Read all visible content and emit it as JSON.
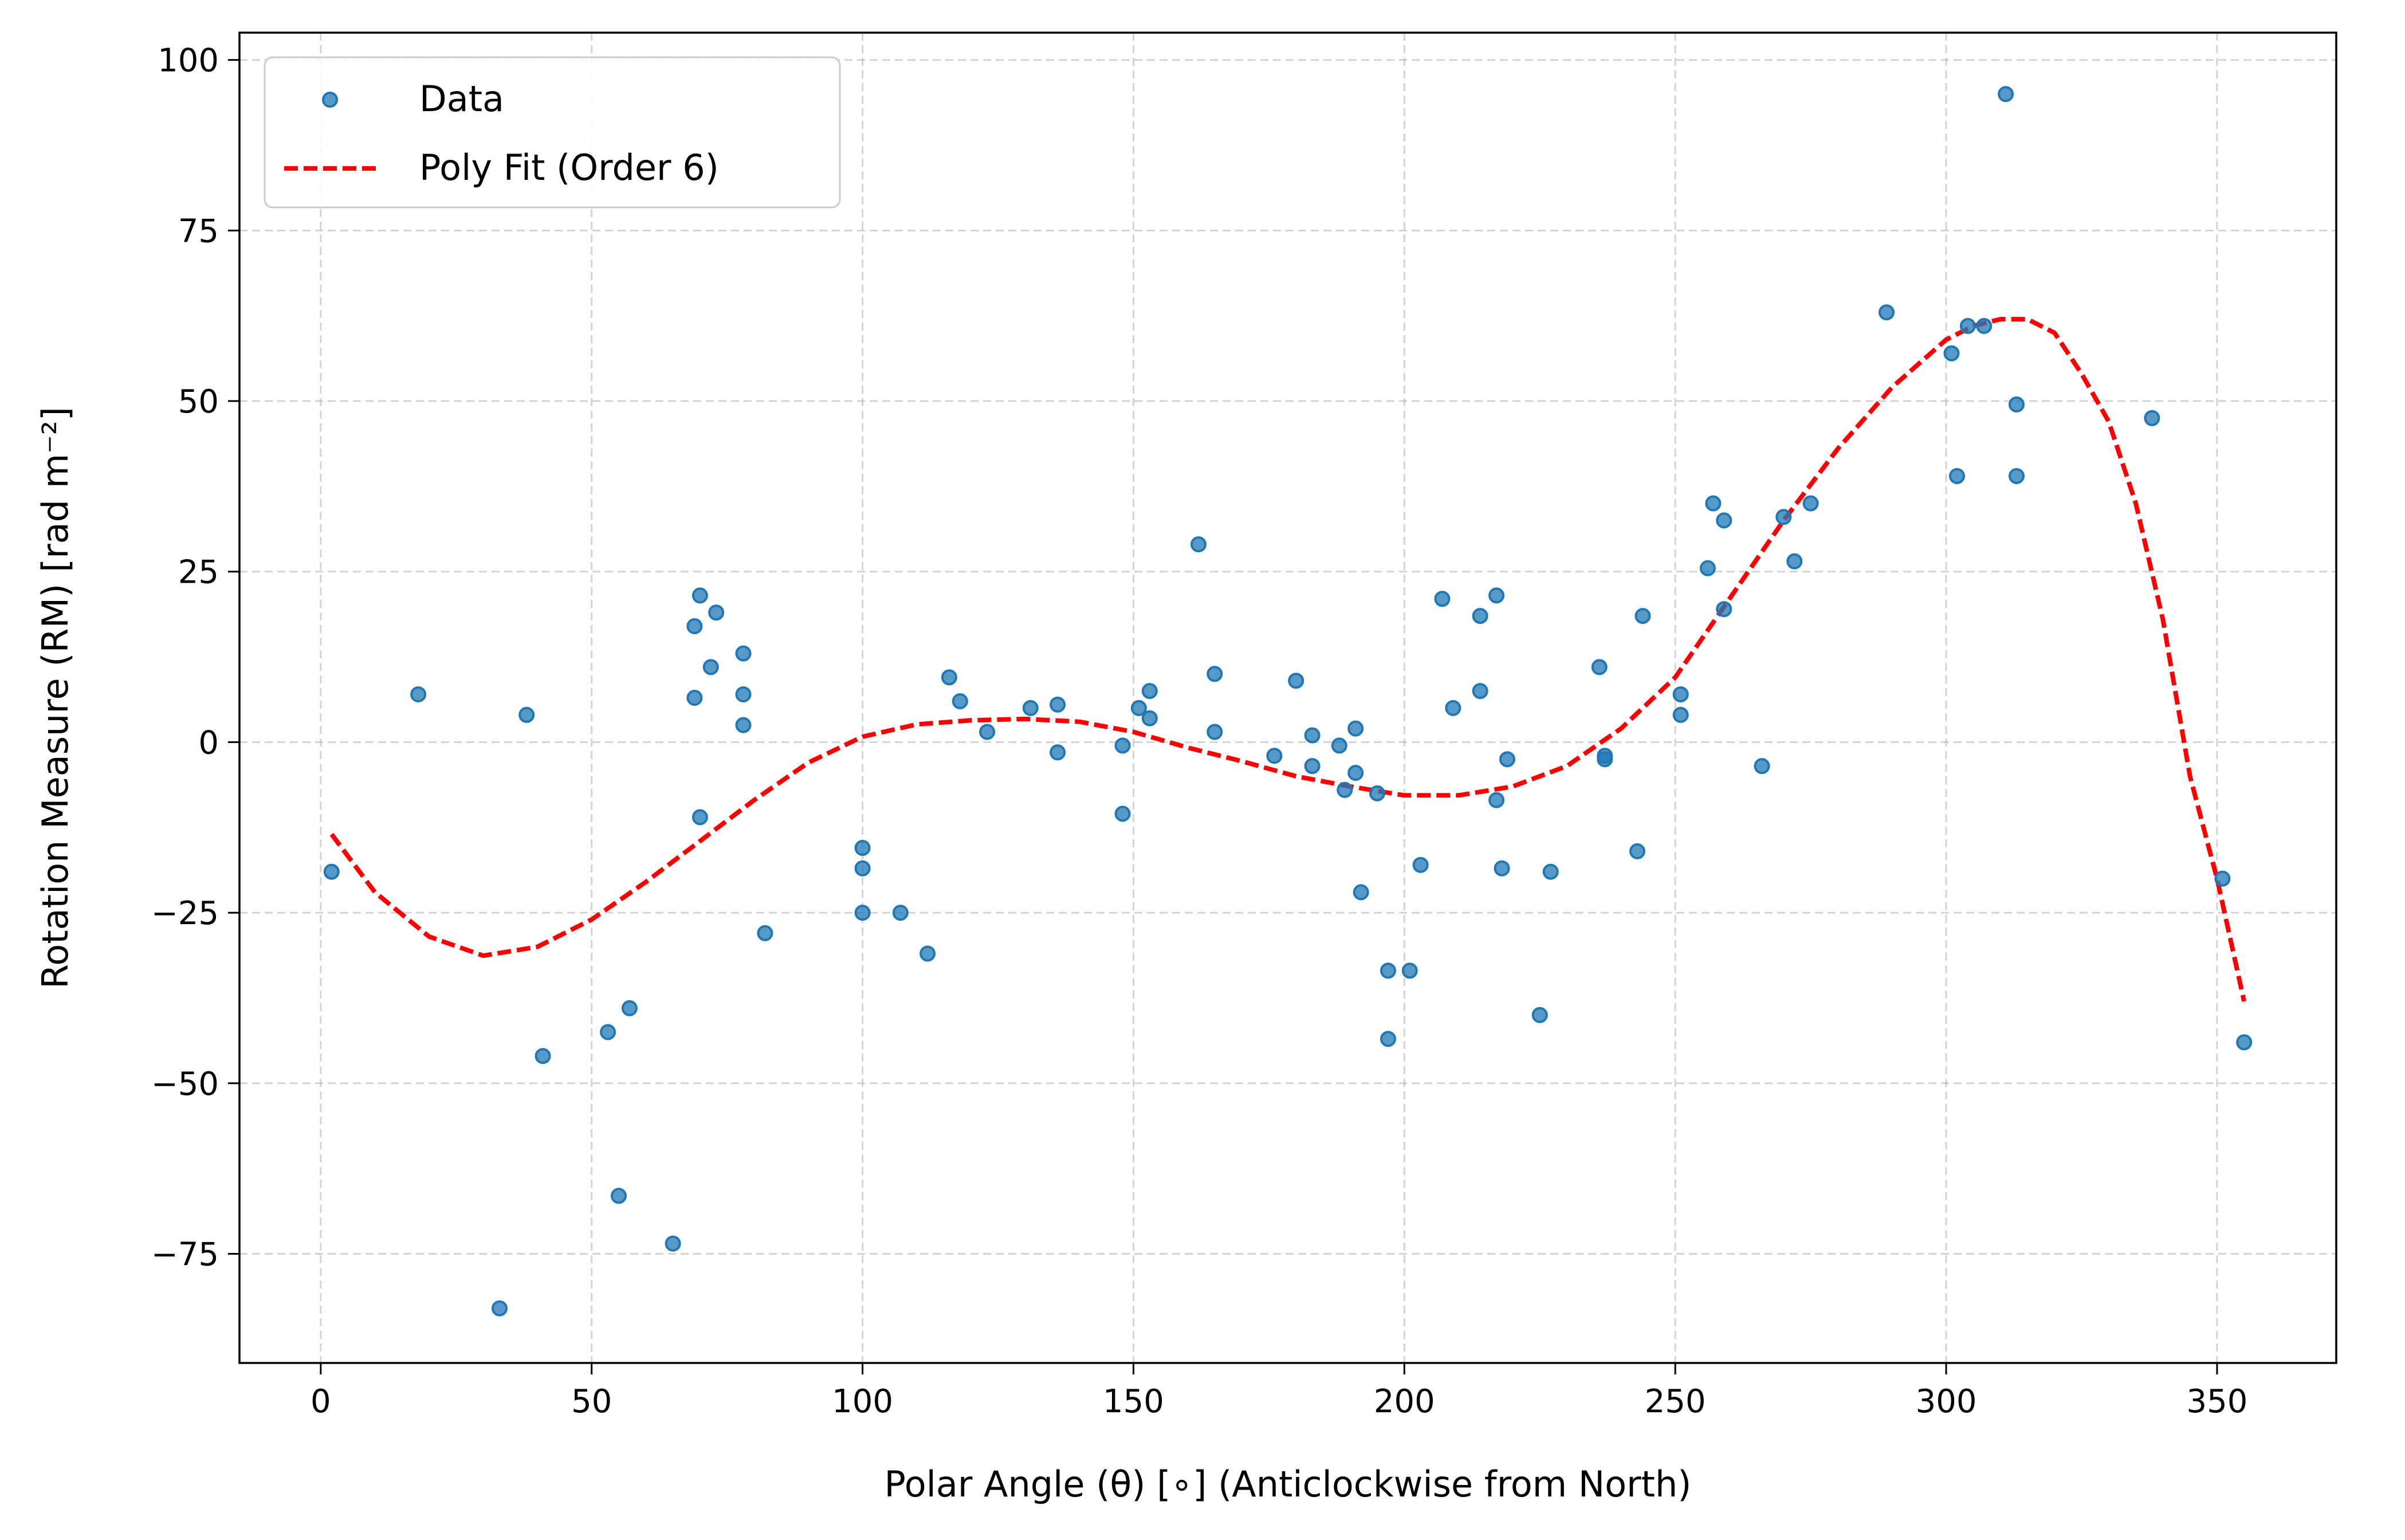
{
  "chart_data": {
    "type": "scatter",
    "xlabel": "Polar Angle (θ) [∘] (Anticlockwise from North)",
    "ylabel": "Rotation Measure (RM) [rad m⁻²]",
    "xlim": [
      -15,
      372
    ],
    "ylim": [
      -91,
      104
    ],
    "xticks": [
      0,
      50,
      100,
      150,
      200,
      250,
      300,
      350
    ],
    "yticks": [
      -75,
      -50,
      -25,
      0,
      25,
      50,
      75,
      100
    ],
    "xtick_labels": [
      "0",
      "50",
      "100",
      "150",
      "200",
      "250",
      "300",
      "350"
    ],
    "ytick_labels": [
      "−75",
      "−50",
      "−25",
      "0",
      "25",
      "50",
      "75",
      "100"
    ],
    "grid": true,
    "legend": {
      "position": "top-left"
    },
    "series": [
      {
        "name": "Data",
        "kind": "scatter",
        "color": "#1f77b4",
        "points": [
          [
            2,
            -19
          ],
          [
            18,
            7
          ],
          [
            33,
            -83
          ],
          [
            38,
            4
          ],
          [
            41,
            -46
          ],
          [
            53,
            -42.5
          ],
          [
            55,
            -66.5
          ],
          [
            57,
            -39
          ],
          [
            65,
            -73.5
          ],
          [
            69,
            17
          ],
          [
            69,
            6.5
          ],
          [
            70,
            21.5
          ],
          [
            70,
            -11
          ],
          [
            72,
            11
          ],
          [
            73,
            19
          ],
          [
            78,
            13
          ],
          [
            78,
            7
          ],
          [
            78,
            2.5
          ],
          [
            82,
            -28
          ],
          [
            100,
            -15.5
          ],
          [
            100,
            -18.5
          ],
          [
            100,
            -25
          ],
          [
            107,
            -25
          ],
          [
            112,
            -31
          ],
          [
            116,
            9.5
          ],
          [
            118,
            6
          ],
          [
            123,
            1.5
          ],
          [
            131,
            5
          ],
          [
            136,
            5.5
          ],
          [
            136,
            -1.5
          ],
          [
            148,
            -0.5
          ],
          [
            148,
            -10.5
          ],
          [
            151,
            5
          ],
          [
            153,
            3.5
          ],
          [
            153,
            7.5
          ],
          [
            162,
            29
          ],
          [
            165,
            10
          ],
          [
            165,
            1.5
          ],
          [
            176,
            -2
          ],
          [
            180,
            9
          ],
          [
            183,
            1
          ],
          [
            183,
            -3.5
          ],
          [
            188,
            -0.5
          ],
          [
            189,
            -7
          ],
          [
            191,
            2
          ],
          [
            191,
            -4.5
          ],
          [
            192,
            -22
          ],
          [
            195,
            -7.5
          ],
          [
            197,
            -33.5
          ],
          [
            197,
            -43.5
          ],
          [
            201,
            -33.5
          ],
          [
            203,
            -18
          ],
          [
            207,
            21
          ],
          [
            209,
            5
          ],
          [
            214,
            18.5
          ],
          [
            214,
            7.5
          ],
          [
            217,
            21.5
          ],
          [
            217,
            -8.5
          ],
          [
            218,
            -18.5
          ],
          [
            219,
            -2.5
          ],
          [
            225,
            -40
          ],
          [
            227,
            -19
          ],
          [
            236,
            11
          ],
          [
            237,
            -2
          ],
          [
            237,
            -2.5
          ],
          [
            243,
            -16
          ],
          [
            244,
            18.5
          ],
          [
            251,
            7
          ],
          [
            251,
            4
          ],
          [
            256,
            25.5
          ],
          [
            257,
            35
          ],
          [
            259,
            32.5
          ],
          [
            259,
            19.5
          ],
          [
            266,
            -3.5
          ],
          [
            270,
            33
          ],
          [
            272,
            26.5
          ],
          [
            275,
            35
          ],
          [
            289,
            63
          ],
          [
            301,
            57
          ],
          [
            302,
            39
          ],
          [
            304,
            61
          ],
          [
            307,
            61
          ],
          [
            311,
            95
          ],
          [
            313,
            49.5
          ],
          [
            313,
            39
          ],
          [
            338,
            47.5
          ],
          [
            351,
            -20
          ],
          [
            355,
            -44
          ]
        ]
      },
      {
        "name": "Poly Fit (Order 6)",
        "kind": "line",
        "style": "dashed",
        "color": "#ff0000",
        "x": [
          2,
          10,
          20,
          30,
          40,
          50,
          60,
          70,
          80,
          90,
          100,
          110,
          120,
          130,
          140,
          150,
          160,
          170,
          180,
          190,
          200,
          210,
          220,
          230,
          240,
          250,
          260,
          270,
          280,
          290,
          300,
          305,
          310,
          315,
          320,
          325,
          330,
          335,
          340,
          345,
          350,
          355
        ],
        "y": [
          -13.5,
          -22,
          -28.5,
          -31.3,
          -30,
          -26,
          -20.5,
          -14.5,
          -8.5,
          -3,
          0.8,
          2.6,
          3.2,
          3.4,
          3,
          1.5,
          -0.8,
          -2.8,
          -5,
          -6.5,
          -7.8,
          -7.8,
          -6.5,
          -3.5,
          2,
          9.5,
          21,
          32.5,
          43,
          52,
          59,
          61,
          62,
          62,
          60,
          54,
          47,
          35,
          18,
          -5,
          -20,
          -38
        ]
      }
    ]
  }
}
